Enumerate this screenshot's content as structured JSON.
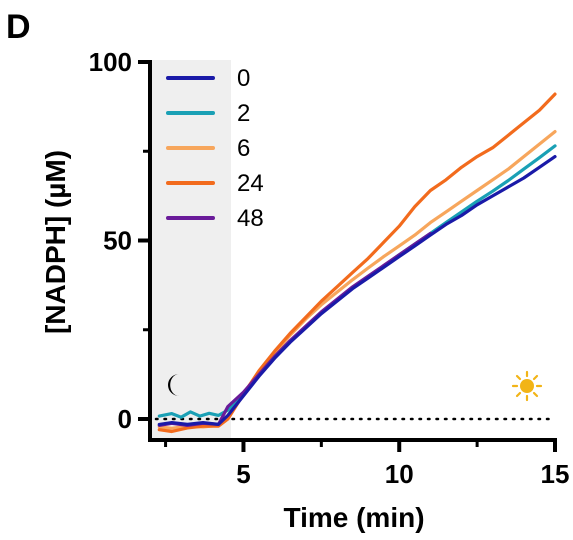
{
  "panel_label": "D",
  "icons": {
    "dark": "moon-icon",
    "light": "sun-icon"
  },
  "colors": {
    "dark_shading": "#efefef",
    "sun": "#f2b417",
    "axis": "#000000"
  },
  "chart_data": {
    "type": "line",
    "xlabel": "Time (min)",
    "ylabel": "[NADPH] (µM)",
    "xlim": [
      2.0,
      15.0
    ],
    "ylim": [
      -3,
      100
    ],
    "xticks": [
      5,
      10,
      15
    ],
    "xtick_labels": [
      "5",
      "10",
      "15"
    ],
    "yticks": [
      0,
      50,
      100
    ],
    "ytick_labels": [
      "0",
      "50",
      "100"
    ],
    "grid": false,
    "legend_position": "top-left",
    "dark_period": [
      2.0,
      4.6
    ],
    "reference_line_y": 0,
    "series": [
      {
        "name": "0",
        "color": "#1a1aa8",
        "x": [
          2.3,
          2.7,
          3.2,
          3.7,
          4.2,
          4.5,
          5.0,
          5.5,
          6.0,
          6.5,
          7.0,
          7.5,
          8.0,
          8.5,
          9.0,
          9.5,
          10.0,
          10.5,
          11.0,
          11.5,
          12.0,
          12.5,
          13.0,
          13.5,
          14.0,
          14.5,
          15.0
        ],
        "y": [
          -1.5,
          -1.0,
          -1.5,
          -1.0,
          -1.5,
          1.0,
          6.5,
          12.0,
          17.0,
          21.5,
          25.5,
          29.5,
          33.0,
          36.5,
          39.5,
          42.5,
          45.5,
          48.5,
          51.5,
          54.5,
          57.0,
          60.0,
          62.5,
          65.0,
          67.5,
          70.5,
          73.5
        ]
      },
      {
        "name": "2",
        "color": "#1aa0b5",
        "x": [
          2.3,
          2.7,
          3.0,
          3.3,
          3.6,
          3.9,
          4.2,
          4.5,
          5.0,
          5.5,
          6.0,
          6.5,
          7.0,
          7.5,
          8.0,
          8.5,
          9.0,
          9.5,
          10.0,
          10.5,
          11.0,
          11.5,
          12.0,
          12.5,
          13.0,
          13.5,
          14.0,
          14.5,
          15.0
        ],
        "y": [
          0.8,
          1.5,
          0.5,
          2.0,
          0.8,
          1.6,
          1.0,
          2.5,
          6.8,
          12.2,
          17.2,
          21.8,
          25.8,
          29.8,
          33.3,
          36.8,
          39.8,
          42.8,
          46.0,
          49.0,
          52.0,
          55.0,
          58.0,
          61.0,
          63.8,
          66.8,
          70.0,
          73.2,
          76.5
        ]
      },
      {
        "name": "6",
        "color": "#f7a65c",
        "x": [
          2.3,
          2.7,
          3.2,
          3.7,
          4.2,
          4.5,
          5.0,
          5.5,
          6.0,
          6.5,
          7.0,
          7.5,
          8.0,
          8.5,
          9.0,
          9.5,
          10.0,
          10.5,
          11.0,
          11.5,
          12.0,
          12.5,
          13.0,
          13.5,
          14.0,
          14.5,
          15.0
        ],
        "y": [
          -2.2,
          -2.6,
          -2.0,
          -2.2,
          -1.8,
          0.5,
          7.0,
          13.0,
          18.5,
          23.5,
          28.0,
          32.0,
          35.5,
          39.0,
          42.3,
          45.5,
          48.5,
          51.5,
          55.0,
          58.0,
          61.0,
          64.0,
          67.0,
          70.0,
          73.5,
          77.0,
          80.5
        ]
      },
      {
        "name": "24",
        "color": "#f26b1d",
        "x": [
          2.3,
          2.7,
          3.2,
          3.7,
          4.2,
          4.5,
          5.0,
          5.5,
          6.0,
          6.5,
          7.0,
          7.5,
          8.0,
          8.5,
          9.0,
          9.5,
          10.0,
          10.5,
          11.0,
          11.5,
          12.0,
          12.5,
          13.0,
          13.5,
          14.0,
          14.5,
          15.0
        ],
        "y": [
          -3.0,
          -3.5,
          -2.5,
          -2.0,
          -2.0,
          0.0,
          7.0,
          13.5,
          19.0,
          24.0,
          28.5,
          33.0,
          37.0,
          41.0,
          45.0,
          49.5,
          54.0,
          59.5,
          64.0,
          67.0,
          70.5,
          73.5,
          76.0,
          79.5,
          83.0,
          86.5,
          91.0
        ]
      },
      {
        "name": "48",
        "color": "#6a1b9a",
        "x": [
          2.3,
          2.7,
          3.2,
          3.7,
          4.2,
          4.5,
          5.0,
          5.5,
          6.0,
          6.5,
          7.0,
          7.5,
          8.0,
          8.5,
          9.0,
          9.5,
          10.0,
          10.5,
          11.0
        ],
        "y": [
          -1.8,
          -1.2,
          -1.8,
          -1.2,
          -1.5,
          3.5,
          7.5,
          12.5,
          17.5,
          22.0,
          26.0,
          30.0,
          33.5,
          37.0,
          40.0,
          43.0,
          46.0,
          49.0,
          52.0
        ]
      }
    ]
  }
}
